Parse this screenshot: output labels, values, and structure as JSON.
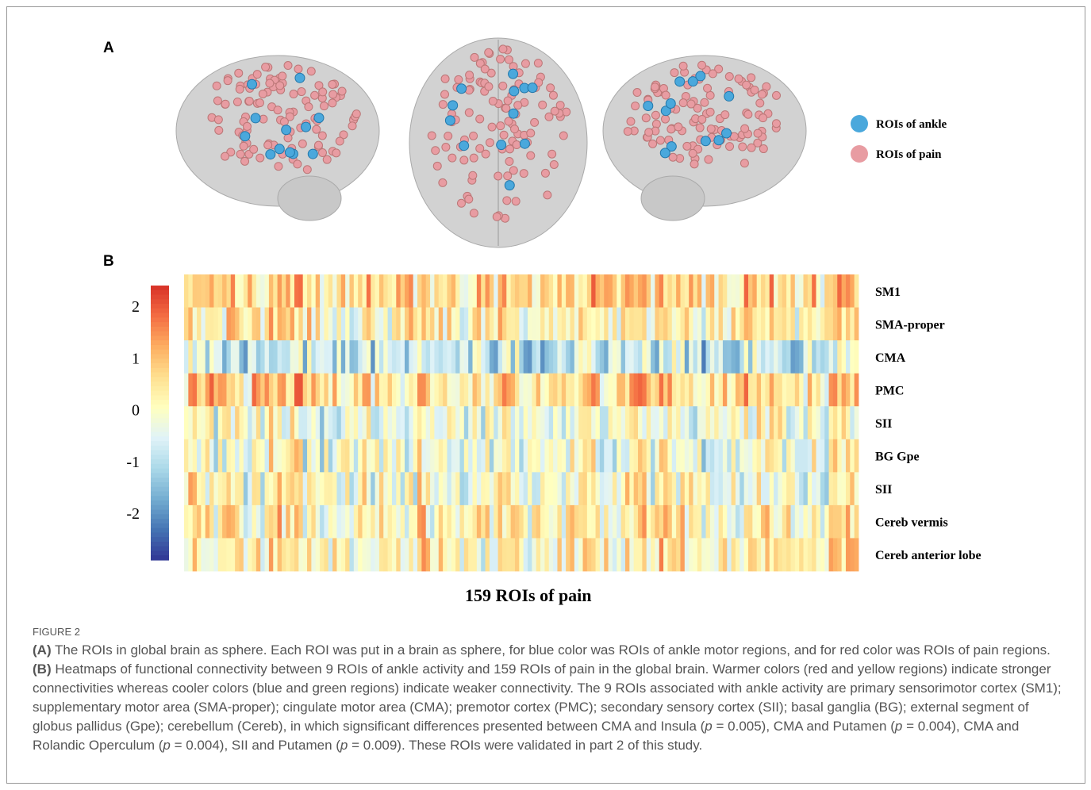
{
  "figure": {
    "panel_a": {
      "label": "A",
      "legend": [
        {
          "label": "ROIs of ankle",
          "color": "#4aa8dc"
        },
        {
          "label": "ROIs of pain",
          "color": "#e89ca2"
        }
      ]
    },
    "panel_b": {
      "label": "B",
      "colorbar": {
        "clim": [
          -2.9,
          2.4
        ],
        "ticks": [
          2,
          1,
          0,
          -1,
          -2
        ]
      },
      "row_labels": [
        "SM1",
        "SMA-proper",
        "CMA",
        "PMC",
        "SII",
        "BG Gpe",
        "SII",
        "Cereb vermis",
        "Cereb anterior lobe"
      ],
      "x_label": "159 ROIs of pain"
    },
    "caption": {
      "label": "FIGURE 2",
      "segments": [
        {
          "text": "(A)",
          "bold": true
        },
        {
          "text": " The ROIs in global brain as sphere. Each ROI was put in a brain as sphere, for blue color was ROIs of ankle motor regions, and for red color was ROIs of pain regions. "
        },
        {
          "text": "(B)",
          "bold": true
        },
        {
          "text": " Heatmaps of functional connectivity between 9 ROIs of ankle activity and 159 ROIs of pain in the global brain. Warmer colors (red and yellow regions) indicate stronger connectivities whereas cooler colors (blue and green regions) indicate weaker connectivity. The 9 ROIs associated with ankle activity are primary sensorimotor cortex (SM1); supplementary motor area (SMA-proper); cingulate motor area (CMA); premotor cortex (PMC); secondary sensory cortex (SII); basal ganglia (BG); external segment of globus pallidus (Gpe); cerebellum (Cereb), in which signsificant differences presented between CMA and Insula ("
        },
        {
          "text": "p",
          "italic": true
        },
        {
          "text": " = 0.005), CMA and Putamen ("
        },
        {
          "text": "p",
          "italic": true
        },
        {
          "text": " = 0.004), CMA and Rolandic Operculum ("
        },
        {
          "text": "p",
          "italic": true
        },
        {
          "text": " = 0.004), SII and Putamen ("
        },
        {
          "text": "p",
          "italic": true
        },
        {
          "text": " = 0.009). These ROIs were validated in part 2 of this study."
        }
      ]
    }
  }
}
